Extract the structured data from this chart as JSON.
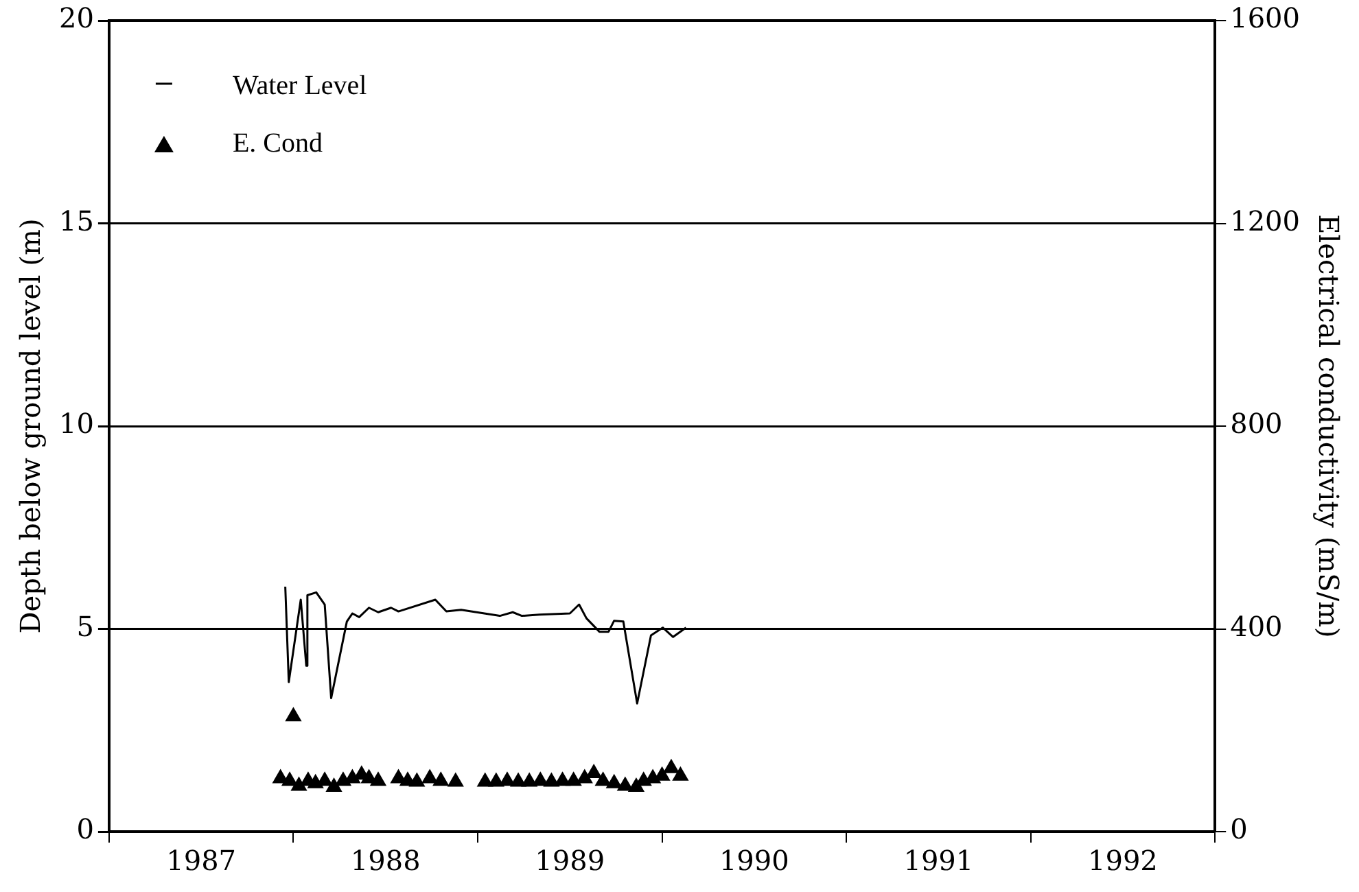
{
  "chart_data": {
    "type": "line",
    "ylabel": "Depth below ground level (m)",
    "y2label": "Electrical conductivity (mS/m)",
    "xlim": [
      1987,
      1993
    ],
    "xticks": [
      {
        "value": 1987,
        "label": null
      },
      {
        "value": 1987.5,
        "label": "1987"
      },
      {
        "value": 1988,
        "label": null
      },
      {
        "value": 1988.5,
        "label": "1988"
      },
      {
        "value": 1989,
        "label": null
      },
      {
        "value": 1989.5,
        "label": "1989"
      },
      {
        "value": 1990,
        "label": null
      },
      {
        "value": 1990.5,
        "label": "1990"
      },
      {
        "value": 1991,
        "label": null
      },
      {
        "value": 1991.5,
        "label": "1991"
      },
      {
        "value": 1992,
        "label": null
      },
      {
        "value": 1992.5,
        "label": "1992"
      },
      {
        "value": 1993,
        "label": null
      }
    ],
    "ylim": [
      0,
      20
    ],
    "yticks": [
      0,
      5,
      10,
      15,
      20
    ],
    "y2lim": [
      0,
      1600
    ],
    "y2ticks": [
      0,
      400,
      800,
      1200,
      1600
    ],
    "grid": "y",
    "legend": "top left",
    "series": [
      {
        "name": "Water Level",
        "color": "#000000",
        "marker": "none",
        "x": [
          1987.956,
          1987.975,
          1988.04,
          1988.07,
          1988.076,
          1988.124,
          1988.17,
          1988.205,
          1988.29,
          1988.32,
          1988.357,
          1988.41,
          1988.46,
          1988.53,
          1988.57,
          1988.77,
          1988.83,
          1988.91,
          1989.12,
          1989.19,
          1989.24,
          1989.335,
          1989.5,
          1989.55,
          1989.59,
          1989.66,
          1989.71,
          1989.74,
          1989.79,
          1989.865,
          1989.94,
          1990.004,
          1990.06,
          1990.13
        ],
        "values": [
          6.04,
          3.69,
          5.72,
          4.09,
          5.83,
          5.9,
          5.6,
          3.29,
          5.18,
          5.38,
          5.29,
          5.52,
          5.41,
          5.52,
          5.43,
          5.72,
          5.43,
          5.47,
          5.32,
          5.41,
          5.32,
          5.35,
          5.38,
          5.6,
          5.26,
          4.93,
          4.93,
          5.2,
          5.18,
          3.16,
          4.84,
          5.03,
          4.8,
          5.03
        ]
      },
      {
        "name": "E. Cond",
        "type": "scatter",
        "axis": "y2",
        "color": "#000000",
        "marker": "triangle",
        "x": [
          1987.93,
          1987.98,
          1988.0,
          1988.03,
          1988.08,
          1988.12,
          1988.17,
          1988.22,
          1988.27,
          1988.32,
          1988.37,
          1988.41,
          1988.46,
          1988.57,
          1988.62,
          1988.67,
          1988.74,
          1988.8,
          1988.88,
          1989.04,
          1989.1,
          1989.16,
          1989.22,
          1989.28,
          1989.34,
          1989.4,
          1989.46,
          1989.52,
          1989.58,
          1989.63,
          1989.68,
          1989.74,
          1989.8,
          1989.86,
          1989.9,
          1989.95,
          1990.0,
          1990.05,
          1990.1
        ],
        "values": [
          105,
          100,
          227,
          90,
          100,
          95,
          100,
          88,
          100,
          105,
          112,
          105,
          100,
          105,
          100,
          98,
          105,
          100,
          98,
          98,
          98,
          100,
          98,
          98,
          100,
          98,
          100,
          100,
          105,
          115,
          100,
          95,
          90,
          88,
          100,
          105,
          110,
          125,
          110
        ]
      }
    ]
  }
}
